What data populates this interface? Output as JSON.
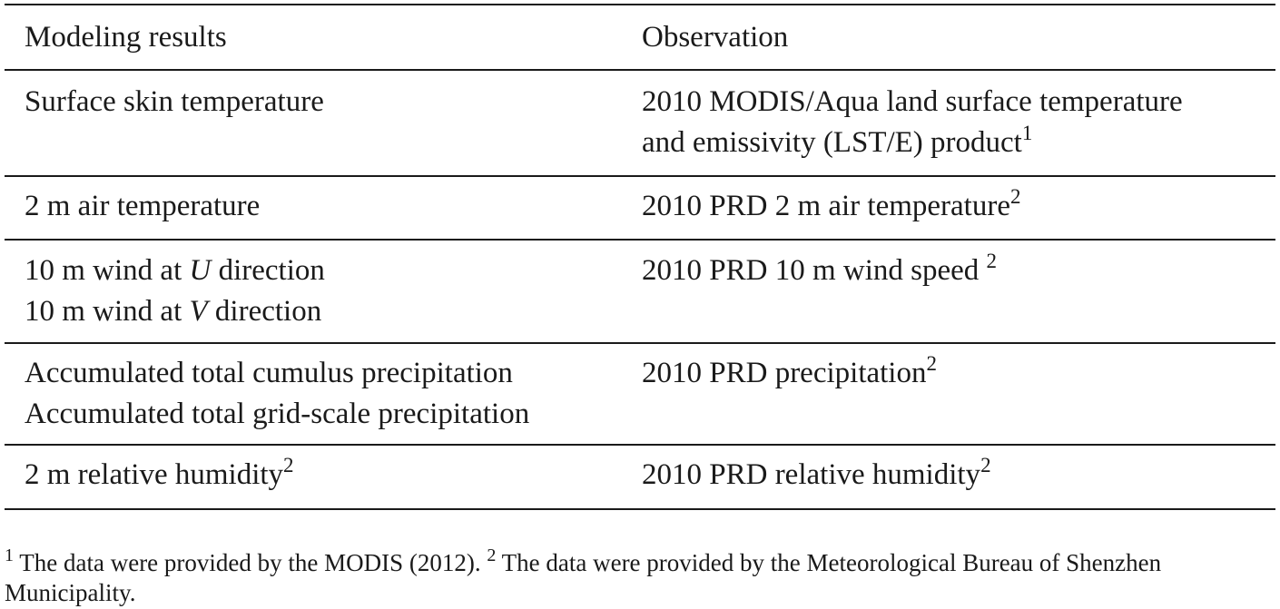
{
  "table": {
    "headers": [
      "Modeling results",
      "Observation"
    ],
    "rows": [
      {
        "model": [
          "Surface skin temperature"
        ],
        "observation": [
          "2010 MODIS/Aqua land surface temperature",
          "and emissivity (LST/E) product"
        ],
        "observation_sup": "1"
      },
      {
        "model": [
          "2 m air temperature"
        ],
        "observation": [
          "2010 PRD 2 m air temperature"
        ],
        "observation_sup": "2"
      },
      {
        "model_parts": [
          {
            "prefix": "10 m wind at ",
            "var": "U",
            "suffix": " direction"
          },
          {
            "prefix": "10 m wind at ",
            "var": "V",
            "suffix": " direction"
          }
        ],
        "observation": [
          "2010 PRD 10 m wind speed "
        ],
        "observation_sup": "2"
      },
      {
        "model": [
          "Accumulated total cumulus precipitation",
          "Accumulated total grid-scale precipitation"
        ],
        "observation": [
          "2010 PRD precipitation"
        ],
        "observation_sup": "2"
      },
      {
        "model": [
          "2 m relative humidity"
        ],
        "model_sup": "2",
        "observation": [
          "2010 PRD relative humidity"
        ],
        "observation_sup": "2"
      }
    ]
  },
  "footnotes": {
    "note1_marker": "1",
    "note1_text": " The data were provided by the MODIS (2012). ",
    "note2_marker": "2",
    "note2_text": " The data were provided by the Meteorological Bureau of Shenzhen",
    "note2_text_cont": "Municipality."
  }
}
